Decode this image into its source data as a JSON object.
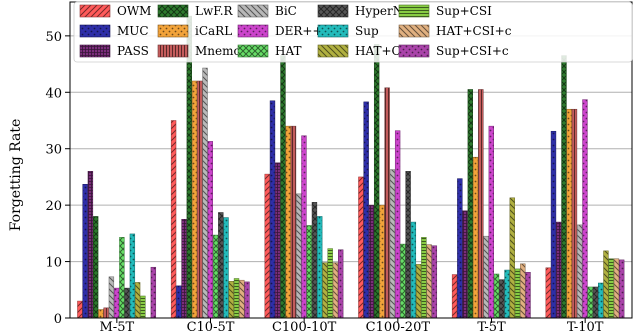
{
  "chart_data": {
    "type": "bar",
    "ylabel": "Forgetting Rate",
    "xlabel": "",
    "ylim": [
      0,
      56
    ],
    "yticks": [
      0,
      10,
      20,
      30,
      40,
      50
    ],
    "grid": "horizontal",
    "legend_position": "top",
    "categories": [
      "M-5T",
      "C10-5T",
      "C100-10T",
      "C100-20T",
      "T-5T",
      "T-10T"
    ],
    "series": [
      {
        "name": "OWM",
        "color": "#ff5a5a",
        "hatch": "diag-fwd",
        "values": [
          3.0,
          35.0,
          25.5,
          25.0,
          7.7,
          8.9
        ]
      },
      {
        "name": "MUC",
        "color": "#2e2ea8",
        "hatch": "dots",
        "values": [
          23.7,
          5.7,
          38.5,
          38.3,
          24.7,
          33.1
        ]
      },
      {
        "name": "PASS",
        "color": "#7b2d7b",
        "hatch": "grid",
        "values": [
          26.0,
          17.5,
          27.5,
          20.0,
          19.0,
          17.0
        ]
      },
      {
        "name": "LwF.R",
        "color": "#2d7a2d",
        "hatch": "cross-diag",
        "values": [
          18.0,
          53.5,
          46.5,
          48.5,
          40.5,
          46.5
        ]
      },
      {
        "name": "iCaRL",
        "color": "#f2a33a",
        "hatch": "dots",
        "values": [
          1.5,
          42.0,
          34.0,
          20.0,
          28.5,
          37.0
        ]
      },
      {
        "name": "Mnemonics",
        "color": "#c45c5c",
        "hatch": "vertical",
        "values": [
          1.8,
          42.0,
          34.0,
          40.8,
          40.5,
          37.0
        ]
      },
      {
        "name": "BiC",
        "color": "#b8b8b8",
        "hatch": "diag-back",
        "values": [
          7.3,
          44.3,
          22.0,
          26.3,
          14.5,
          16.5
        ]
      },
      {
        "name": "DER++",
        "color": "#cc44cc",
        "hatch": "dots",
        "values": [
          5.3,
          31.3,
          32.3,
          33.2,
          34.0,
          38.7
        ]
      },
      {
        "name": "HAT",
        "color": "#66dd66",
        "hatch": "cross-diag",
        "values": [
          14.3,
          14.7,
          16.4,
          13.1,
          7.8,
          5.5
        ]
      },
      {
        "name": "HyperNet",
        "color": "#555555",
        "hatch": "cross-diag",
        "values": [
          5.3,
          18.7,
          20.5,
          26.0,
          6.8,
          5.5
        ]
      },
      {
        "name": "Sup",
        "color": "#22bbbb",
        "hatch": "dots",
        "values": [
          14.9,
          17.8,
          18.0,
          17.0,
          8.5,
          6.2
        ]
      },
      {
        "name": "HAT+CSI",
        "color": "#b0b040",
        "hatch": "diag-back",
        "values": [
          6.3,
          6.5,
          9.8,
          9.5,
          21.3,
          11.9
        ]
      },
      {
        "name": "Sup+CSI",
        "color": "#88cc44",
        "hatch": "horizontal",
        "values": [
          3.9,
          7.0,
          12.3,
          14.3,
          8.7,
          10.5
        ]
      },
      {
        "name": "HAT+CSI+c",
        "color": "#e0b080",
        "hatch": "diag-back",
        "values": [
          0,
          6.7,
          9.8,
          13.0,
          9.6,
          10.5
        ]
      },
      {
        "name": "Sup+CSI+c",
        "color": "#aa44aa",
        "hatch": "dots",
        "values": [
          9.0,
          6.4,
          12.1,
          12.8,
          8.1,
          10.3
        ]
      }
    ],
    "legend_labels": [
      "OWM",
      "LwF.R",
      "BiC",
      "HyperNet",
      "Sup+CSI",
      "MUC",
      "iCaRL",
      "DER++",
      "Sup",
      "HAT+CSI+c",
      "PASS",
      "Mnemonics",
      "HAT",
      "HAT+CSI",
      "Sup+CSI+c"
    ]
  }
}
